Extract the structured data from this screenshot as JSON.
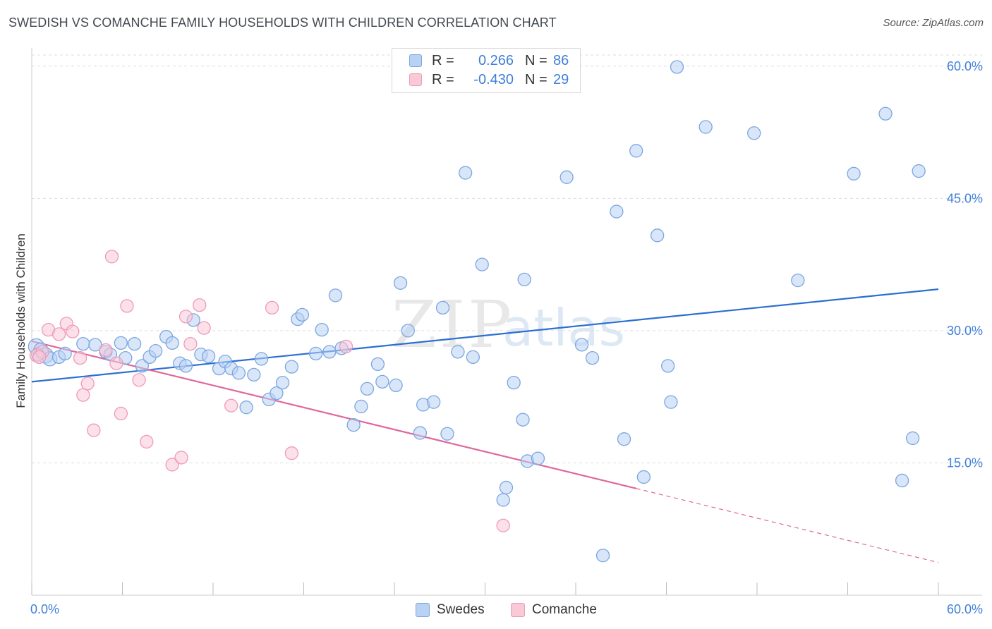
{
  "header": {
    "title": "SWEDISH VS COMANCHE FAMILY HOUSEHOLDS WITH CHILDREN CORRELATION CHART",
    "source": "Source: ZipAtlas.com"
  },
  "watermark": {
    "zip": "ZIP",
    "atlas": "atlas"
  },
  "legend": {
    "rows": [
      {
        "r_label": "R =",
        "r_value": "0.266",
        "n_label": "N =",
        "n_value": "86"
      },
      {
        "r_label": "R =",
        "r_value": "-0.430",
        "n_label": "N =",
        "n_value": "29"
      }
    ],
    "bottom": [
      "Swedes",
      "Comanche"
    ]
  },
  "colors": {
    "swedes_fill": "#b9d2f4",
    "swedes_stroke": "#7aa7e0",
    "swedes_line": "#2b6fd1",
    "comanche_fill": "#f9c9d8",
    "comanche_stroke": "#ef9ab5",
    "comanche_line": "#e0679a",
    "axis_label": "#3f7fd8",
    "grid": "#dedede"
  },
  "chart_data": {
    "type": "scatter",
    "title": "SWEDISH VS COMANCHE FAMILY HOUSEHOLDS WITH CHILDREN CORRELATION CHART",
    "xlabel": "",
    "ylabel": "Family Households with Children",
    "x_tick_labels": [
      "0.0%",
      "60.0%"
    ],
    "y_tick_labels": [
      "15.0%",
      "30.0%",
      "45.0%",
      "60.0%"
    ],
    "y_ticks": [
      15,
      30,
      45,
      60
    ],
    "xlim": [
      0,
      60
    ],
    "ylim": [
      0,
      61.5
    ],
    "grid": "horizontal dashed",
    "legend_position": "top-center",
    "series": [
      {
        "name": "Swedes",
        "trend": {
          "x": [
            0,
            60
          ],
          "y": [
            24.2,
            34.7
          ]
        },
        "points": [
          [
            0.3,
            28.2
          ],
          [
            0.6,
            27.8
          ],
          [
            0.9,
            27.2
          ],
          [
            1.2,
            26.8
          ],
          [
            1.8,
            27.0
          ],
          [
            2.2,
            27.4
          ],
          [
            3.4,
            28.5
          ],
          [
            4.2,
            28.4
          ],
          [
            4.9,
            27.6
          ],
          [
            5.2,
            27.3
          ],
          [
            5.9,
            28.6
          ],
          [
            6.2,
            26.9
          ],
          [
            6.8,
            28.5
          ],
          [
            7.3,
            26.0
          ],
          [
            7.8,
            27.0
          ],
          [
            8.2,
            27.7
          ],
          [
            8.9,
            29.3
          ],
          [
            9.3,
            28.6
          ],
          [
            9.8,
            26.3
          ],
          [
            10.2,
            26.0
          ],
          [
            10.7,
            31.2
          ],
          [
            11.2,
            27.3
          ],
          [
            11.7,
            27.1
          ],
          [
            12.4,
            25.7
          ],
          [
            12.8,
            26.5
          ],
          [
            13.2,
            25.7
          ],
          [
            13.7,
            25.2
          ],
          [
            14.2,
            21.3
          ],
          [
            14.7,
            25.0
          ],
          [
            15.2,
            26.8
          ],
          [
            15.7,
            22.2
          ],
          [
            16.2,
            22.9
          ],
          [
            16.6,
            24.1
          ],
          [
            17.2,
            25.9
          ],
          [
            17.6,
            31.3
          ],
          [
            17.9,
            31.8
          ],
          [
            18.8,
            27.4
          ],
          [
            19.2,
            30.1
          ],
          [
            19.7,
            27.6
          ],
          [
            20.1,
            34.0
          ],
          [
            20.5,
            28.0
          ],
          [
            21.3,
            19.3
          ],
          [
            21.8,
            21.4
          ],
          [
            22.2,
            23.4
          ],
          [
            22.9,
            26.2
          ],
          [
            23.2,
            24.2
          ],
          [
            24.1,
            23.8
          ],
          [
            24.4,
            35.4
          ],
          [
            24.9,
            30.0
          ],
          [
            25.7,
            18.4
          ],
          [
            25.9,
            21.6
          ],
          [
            26.6,
            21.9
          ],
          [
            27.2,
            32.6
          ],
          [
            27.5,
            18.3
          ],
          [
            28.2,
            27.6
          ],
          [
            28.7,
            47.9
          ],
          [
            29.2,
            27.0
          ],
          [
            29.8,
            37.5
          ],
          [
            31.4,
            12.2
          ],
          [
            31.2,
            10.8
          ],
          [
            31.9,
            24.1
          ],
          [
            32.5,
            19.9
          ],
          [
            32.6,
            35.8
          ],
          [
            32.8,
            15.2
          ],
          [
            33.5,
            15.5
          ],
          [
            35.4,
            47.4
          ],
          [
            36.4,
            28.4
          ],
          [
            37.1,
            26.9
          ],
          [
            37.8,
            4.5
          ],
          [
            38.7,
            43.5
          ],
          [
            39.2,
            17.7
          ],
          [
            40.0,
            50.4
          ],
          [
            40.5,
            13.4
          ],
          [
            41.4,
            40.8
          ],
          [
            42.1,
            26.0
          ],
          [
            42.3,
            21.9
          ],
          [
            42.7,
            59.9
          ],
          [
            44.6,
            53.1
          ],
          [
            47.8,
            52.4
          ],
          [
            50.7,
            35.7
          ],
          [
            54.4,
            47.8
          ],
          [
            56.5,
            54.6
          ],
          [
            57.6,
            13.0
          ],
          [
            58.3,
            17.8
          ],
          [
            58.7,
            48.1
          ],
          [
            0.4,
            27.3
          ]
        ],
        "radii": [
          11,
          10,
          11,
          10,
          9,
          9,
          9,
          9,
          9,
          9,
          9,
          9,
          9,
          9,
          9,
          9,
          9,
          9,
          9,
          9,
          9,
          9,
          9,
          9,
          9,
          9,
          9,
          9,
          9,
          9,
          9,
          9,
          9,
          9,
          9,
          9,
          9,
          9,
          9,
          9,
          9,
          9,
          9,
          9,
          9,
          9,
          9,
          9,
          9,
          9,
          9,
          9,
          9,
          9,
          9,
          9,
          9,
          9,
          9,
          9,
          9,
          9,
          9,
          9,
          9,
          9,
          9,
          9,
          9,
          9,
          9,
          9,
          9,
          9,
          9,
          9,
          9,
          9,
          9,
          9,
          9,
          9,
          9,
          9,
          9,
          9
        ]
      },
      {
        "name": "Comanche",
        "trend": {
          "x": [
            0,
            40
          ],
          "y": [
            28.8,
            12.1
          ]
        },
        "trend_dashed": {
          "x": [
            40,
            60
          ],
          "y": [
            12.1,
            3.7
          ]
        },
        "points": [
          [
            0.3,
            27.2
          ],
          [
            0.7,
            27.6
          ],
          [
            1.1,
            30.1
          ],
          [
            1.8,
            29.6
          ],
          [
            2.3,
            30.8
          ],
          [
            2.7,
            29.9
          ],
          [
            3.2,
            26.9
          ],
          [
            3.4,
            22.7
          ],
          [
            3.7,
            24.0
          ],
          [
            4.1,
            18.7
          ],
          [
            4.9,
            27.8
          ],
          [
            5.3,
            38.4
          ],
          [
            5.6,
            26.3
          ],
          [
            5.9,
            20.6
          ],
          [
            6.3,
            32.8
          ],
          [
            7.1,
            24.4
          ],
          [
            7.6,
            17.4
          ],
          [
            9.3,
            14.8
          ],
          [
            9.9,
            15.6
          ],
          [
            10.2,
            31.6
          ],
          [
            10.5,
            28.5
          ],
          [
            11.1,
            32.9
          ],
          [
            11.4,
            30.3
          ],
          [
            13.2,
            21.5
          ],
          [
            15.9,
            32.6
          ],
          [
            17.2,
            16.1
          ],
          [
            20.8,
            28.2
          ],
          [
            31.2,
            7.9
          ],
          [
            0.5,
            27.0
          ]
        ],
        "radii": [
          9,
          9,
          9,
          9,
          9,
          9,
          9,
          9,
          9,
          9,
          9,
          9,
          9,
          9,
          9,
          9,
          9,
          9,
          9,
          9,
          9,
          9,
          9,
          9,
          9,
          9,
          9,
          9,
          9
        ]
      }
    ]
  }
}
